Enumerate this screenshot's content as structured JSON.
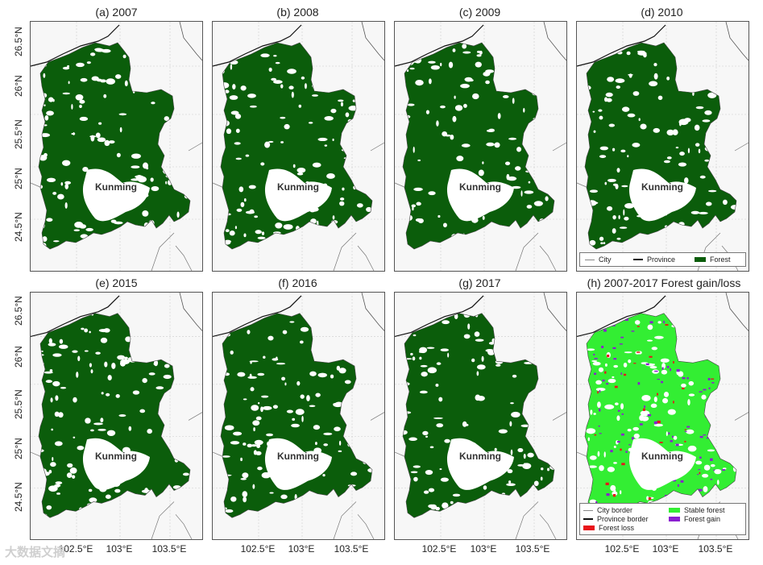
{
  "panels": [
    {
      "title": "(a) 2007"
    },
    {
      "title": "(b) 2008"
    },
    {
      "title": "(c) 2009"
    },
    {
      "title": "(d) 2010"
    },
    {
      "title": "(e) 2015"
    },
    {
      "title": "(f) 2016"
    },
    {
      "title": "(g) 2017"
    },
    {
      "title": "(h) 2007-2017 Forest gain/loss"
    }
  ],
  "city_label": "Kunming",
  "axes": {
    "y_ticks": [
      "26.5°N",
      "26°N",
      "25.5°N",
      "25°N",
      "24.5°N"
    ],
    "x_ticks": [
      "102.5°E",
      "103°E",
      "103.5°E"
    ]
  },
  "legend_top": {
    "items": [
      "City",
      "Province",
      "Forest"
    ]
  },
  "legend_bottom": {
    "items": [
      "City border",
      "Province border",
      "Forest loss",
      "Stable forest",
      "Forest gain"
    ]
  },
  "colors": {
    "forest": "#0b5d0b",
    "stable_forest": "#33ee33",
    "forest_loss": "#e8141a",
    "forest_gain": "#8a1fd0",
    "background": "#f7f7f7"
  },
  "watermark": "大数据文摘"
}
